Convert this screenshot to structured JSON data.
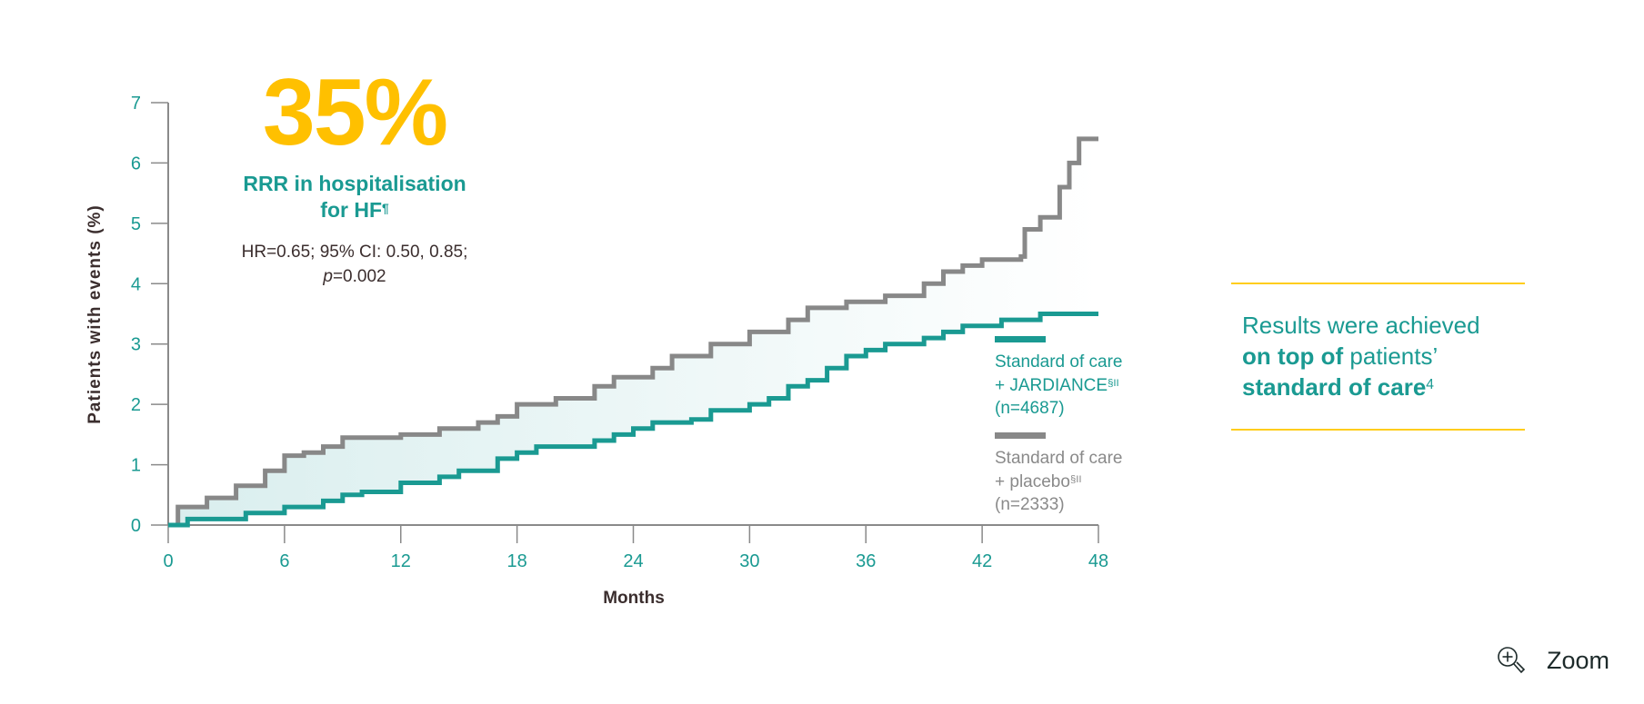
{
  "headline": {
    "value": "35%",
    "line1": "RRR in hospitalisation",
    "line2": "for HF",
    "line2_sup": "¶",
    "stats_line1": "HR=0.65; 95% CI: 0.50, 0.85;",
    "stats_p_label": "p",
    "stats_p_value": "=0.002"
  },
  "legend": [
    {
      "line1": "Standard of care",
      "line2": "+ JARDIANCE",
      "sup": "§II",
      "line3": "(n=4687)",
      "color": "#1a9a92"
    },
    {
      "line1": "Standard of care",
      "line2": "+ placebo",
      "sup": "§II",
      "line3": "(n=2333)",
      "color": "#888888"
    }
  ],
  "note": {
    "line1": "Results were achieved",
    "line2_bold": "on top of",
    "line2_rest": " patients’",
    "line3_bold": "standard of care",
    "line3_sup": "4"
  },
  "zoom_button": {
    "label": "Zoom",
    "icon": "zoom-in-icon"
  },
  "colors": {
    "teal": "#1a9a92",
    "gray": "#888888",
    "yellow": "#ffc000",
    "fill": "#e3f1f1"
  },
  "chart_data": {
    "type": "line",
    "step": true,
    "xlabel": "Months",
    "ylabel": "Patients with events (%)",
    "xlim": [
      0,
      48
    ],
    "ylim": [
      0,
      7
    ],
    "xticks": [
      0,
      6,
      12,
      18,
      24,
      30,
      36,
      42,
      48
    ],
    "yticks": [
      0,
      1,
      2,
      3,
      4,
      5,
      6,
      7
    ],
    "grid": false,
    "shaded_between_series": true,
    "series": [
      {
        "name": "Standard of care + placebo (n=2333)",
        "color": "#888888",
        "x": [
          0,
          0.5,
          2,
          3.5,
          5,
          6,
          7,
          8,
          9,
          12,
          14,
          16,
          17,
          18,
          20,
          22,
          23,
          25,
          26,
          28,
          30,
          32,
          33,
          35,
          37,
          39,
          40,
          41,
          42,
          44,
          44.2,
          45,
          46,
          46.5,
          47,
          48
        ],
        "y": [
          0,
          0.3,
          0.45,
          0.65,
          0.9,
          1.15,
          1.2,
          1.3,
          1.45,
          1.5,
          1.6,
          1.7,
          1.8,
          2.0,
          2.1,
          2.3,
          2.45,
          2.6,
          2.8,
          3.0,
          3.2,
          3.4,
          3.6,
          3.7,
          3.8,
          4.0,
          4.2,
          4.3,
          4.4,
          4.45,
          4.9,
          5.1,
          5.6,
          6.0,
          6.4,
          6.4
        ]
      },
      {
        "name": "Standard of care + JARDIANCE (n=4687)",
        "color": "#1a9a92",
        "x": [
          0,
          1,
          4,
          6,
          8,
          9,
          10,
          12,
          14,
          15,
          17,
          18,
          19,
          22,
          23,
          24,
          25,
          27,
          28,
          30,
          31,
          32,
          33,
          34,
          35,
          36,
          37,
          39,
          40,
          41,
          43,
          45,
          48
        ],
        "y": [
          0,
          0.1,
          0.2,
          0.3,
          0.4,
          0.5,
          0.55,
          0.7,
          0.8,
          0.9,
          1.1,
          1.2,
          1.3,
          1.4,
          1.5,
          1.6,
          1.7,
          1.75,
          1.9,
          2.0,
          2.1,
          2.3,
          2.4,
          2.6,
          2.8,
          2.9,
          3.0,
          3.1,
          3.2,
          3.3,
          3.4,
          3.5,
          3.5
        ]
      }
    ]
  }
}
